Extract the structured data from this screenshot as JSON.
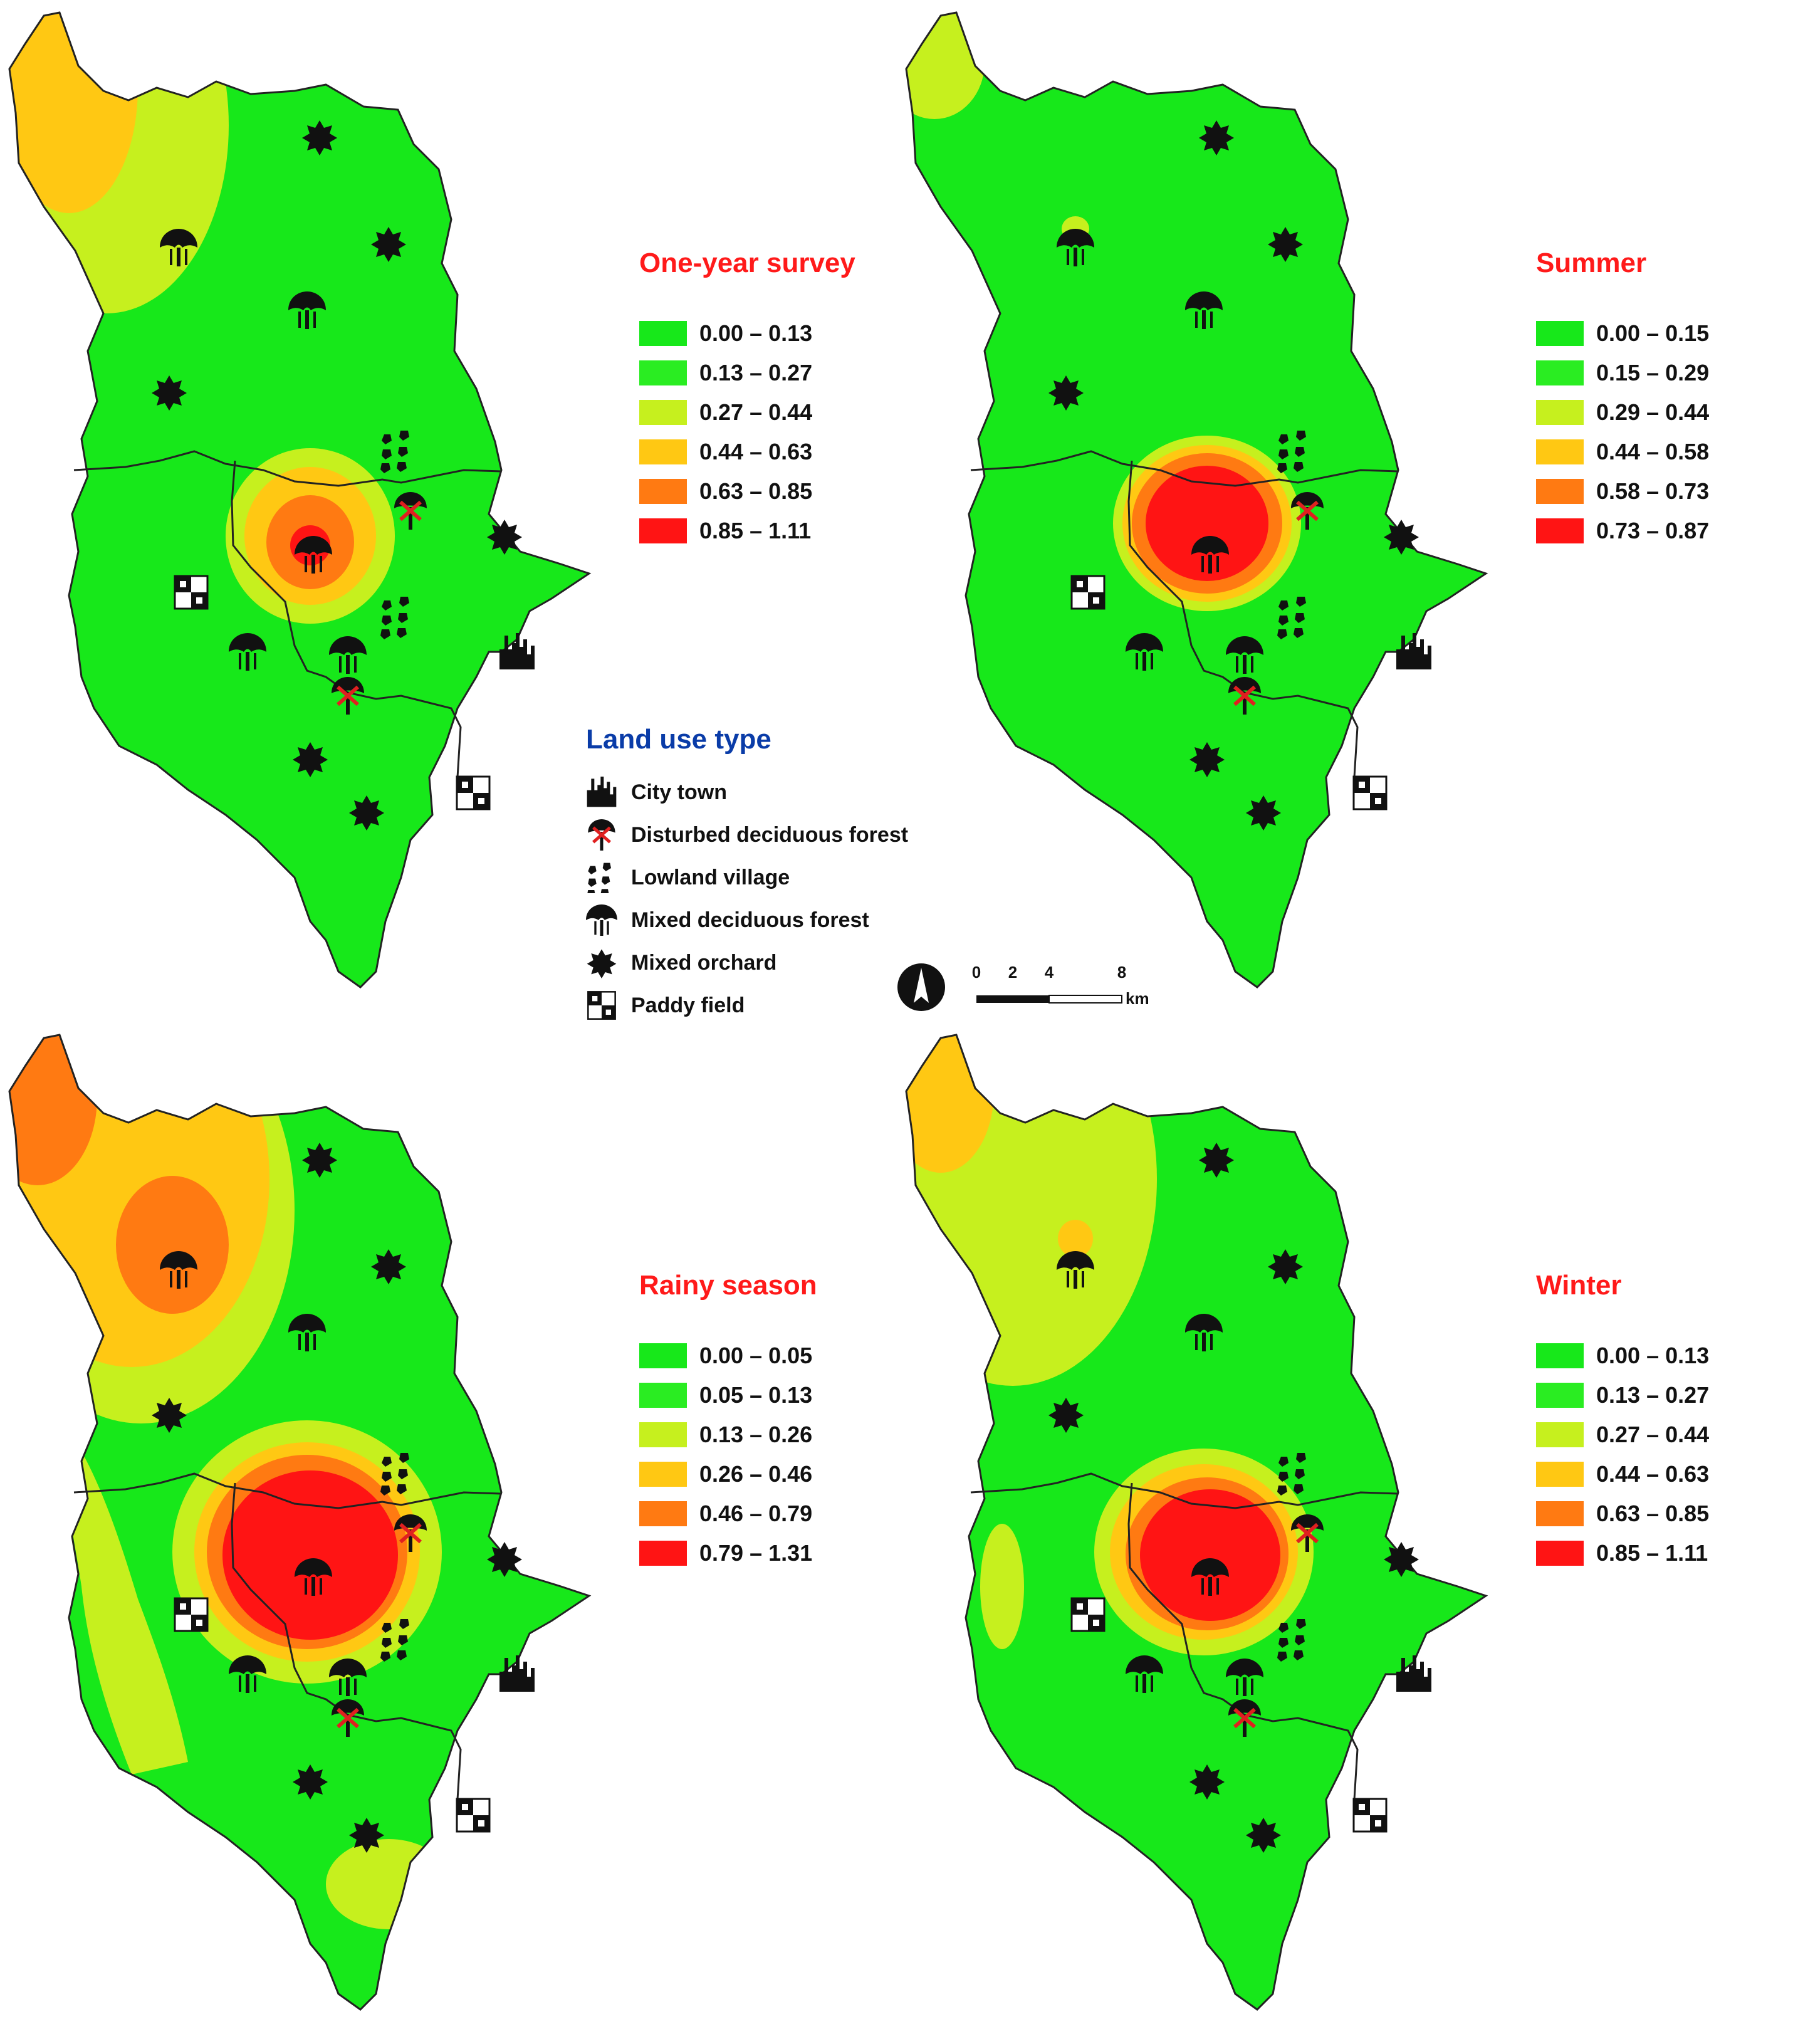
{
  "panels": [
    {
      "title": "One-year survey",
      "legend": [
        "0.00 – 0.13",
        "0.13 – 0.27",
        "0.27 – 0.44",
        "0.44 – 0.63",
        "0.63 – 0.85",
        "0.85 – 1.11"
      ]
    },
    {
      "title": "Summer",
      "legend": [
        "0.00 – 0.15",
        "0.15 – 0.29",
        "0.29 – 0.44",
        "0.44 – 0.58",
        "0.58 – 0.73",
        "0.73 – 0.87"
      ]
    },
    {
      "title": "Rainy season",
      "legend": [
        "0.00 – 0.05",
        "0.05 – 0.13",
        "0.13 – 0.26",
        "0.26 – 0.46",
        "0.46 – 0.79",
        "0.79 – 1.31"
      ]
    },
    {
      "title": "Winter",
      "legend": [
        "0.00 – 0.13",
        "0.13 – 0.27",
        "0.27 – 0.44",
        "0.44 – 0.63",
        "0.63 – 0.85",
        "0.85 – 1.11"
      ]
    }
  ],
  "class_colors": [
    "#17e81a",
    "#2aed22",
    "#c6f01e",
    "#ffc813",
    "#ff7a12",
    "#ff1414"
  ],
  "land_use": {
    "title": "Land use type",
    "items": [
      {
        "label": "City town",
        "icon": "city-town-icon"
      },
      {
        "label": "Disturbed deciduous forest",
        "icon": "disturbed-forest-icon"
      },
      {
        "label": "Lowland village",
        "icon": "lowland-village-icon"
      },
      {
        "label": "Mixed deciduous forest",
        "icon": "mixed-forest-icon"
      },
      {
        "label": "Mixed orchard",
        "icon": "mixed-orchard-icon"
      },
      {
        "label": "Paddy field",
        "icon": "paddy-field-icon"
      }
    ]
  },
  "scale_bar": {
    "ticks": [
      "0",
      "2",
      "4",
      "8"
    ],
    "unit": "km"
  },
  "north_arrow": "north-arrow-icon"
}
